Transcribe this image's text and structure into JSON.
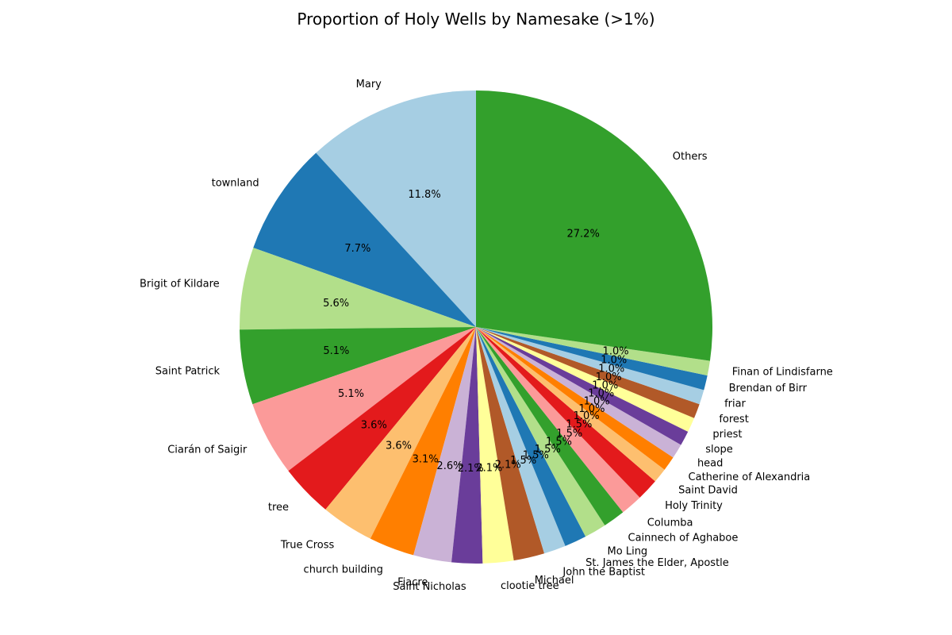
{
  "chart_data": {
    "type": "pie",
    "title": "Proportion of Holy Wells by Namesake (>1%)",
    "start_angle_deg": 90,
    "direction": "counterclockwise",
    "slices": [
      {
        "label": "Mary",
        "value": 11.8,
        "pct_label": "11.8%",
        "color": "#a6cee3"
      },
      {
        "label": "townland",
        "value": 7.7,
        "pct_label": "7.7%",
        "color": "#1f78b4"
      },
      {
        "label": "Brigit of Kildare",
        "value": 5.6,
        "pct_label": "5.6%",
        "color": "#b2df8a"
      },
      {
        "label": "Saint Patrick",
        "value": 5.1,
        "pct_label": "5.1%",
        "color": "#33a02c"
      },
      {
        "label": "Ciarán of Saigir",
        "value": 5.1,
        "pct_label": "5.1%",
        "color": "#fb9a99"
      },
      {
        "label": "tree",
        "value": 3.6,
        "pct_label": "3.6%",
        "color": "#e31a1c"
      },
      {
        "label": "True Cross",
        "value": 3.6,
        "pct_label": "3.6%",
        "color": "#fdbf6f"
      },
      {
        "label": "church building",
        "value": 3.1,
        "pct_label": "3.1%",
        "color": "#ff7f00"
      },
      {
        "label": "Fiacre",
        "value": 2.6,
        "pct_label": "2.6%",
        "color": "#cab2d6"
      },
      {
        "label": "Saint Nicholas",
        "value": 2.1,
        "pct_label": "2.1%",
        "color": "#6a3d9a"
      },
      {
        "label": "clootie tree",
        "value": 2.1,
        "pct_label": "2.1%",
        "color": "#ffff99"
      },
      {
        "label": "Michael",
        "value": 2.1,
        "pct_label": "2.1%",
        "color": "#b15928"
      },
      {
        "label": "John the Baptist",
        "value": 1.5,
        "pct_label": "1.5%",
        "color": "#a6cee3"
      },
      {
        "label": "St. James the Elder, Apostle",
        "value": 1.5,
        "pct_label": "1.5%",
        "color": "#1f78b4"
      },
      {
        "label": "Mo Ling",
        "value": 1.5,
        "pct_label": "1.5%",
        "color": "#b2df8a"
      },
      {
        "label": "Cainnech of Aghaboe",
        "value": 1.5,
        "pct_label": "1.5%",
        "color": "#33a02c"
      },
      {
        "label": "Columba",
        "value": 1.5,
        "pct_label": "1.5%",
        "color": "#fb9a99"
      },
      {
        "label": "Holy Trinity",
        "value": 1.5,
        "pct_label": "1.5%",
        "color": "#e31a1c"
      },
      {
        "label": "Saint David",
        "value": 1.0,
        "pct_label": "1.0%",
        "color": "#fdbf6f"
      },
      {
        "label": "Catherine of Alexandria",
        "value": 1.0,
        "pct_label": "1.0%",
        "color": "#ff7f00"
      },
      {
        "label": "head",
        "value": 1.0,
        "pct_label": "1.0%",
        "color": "#cab2d6"
      },
      {
        "label": "slope",
        "value": 1.0,
        "pct_label": "1.0%",
        "color": "#6a3d9a"
      },
      {
        "label": "priest",
        "value": 1.0,
        "pct_label": "1.0%",
        "color": "#ffff99"
      },
      {
        "label": "forest",
        "value": 1.0,
        "pct_label": "1.0%",
        "color": "#b15928"
      },
      {
        "label": "friar",
        "value": 1.0,
        "pct_label": "1.0%",
        "color": "#a6cee3"
      },
      {
        "label": "Brendan of Birr",
        "value": 1.0,
        "pct_label": "1.0%",
        "color": "#1f78b4"
      },
      {
        "label": "Finan of Lindisfarne",
        "value": 1.0,
        "pct_label": "1.0%",
        "color": "#b2df8a"
      },
      {
        "label": "Others",
        "value": 27.2,
        "pct_label": "27.2%",
        "color": "#33a02c"
      }
    ]
  }
}
